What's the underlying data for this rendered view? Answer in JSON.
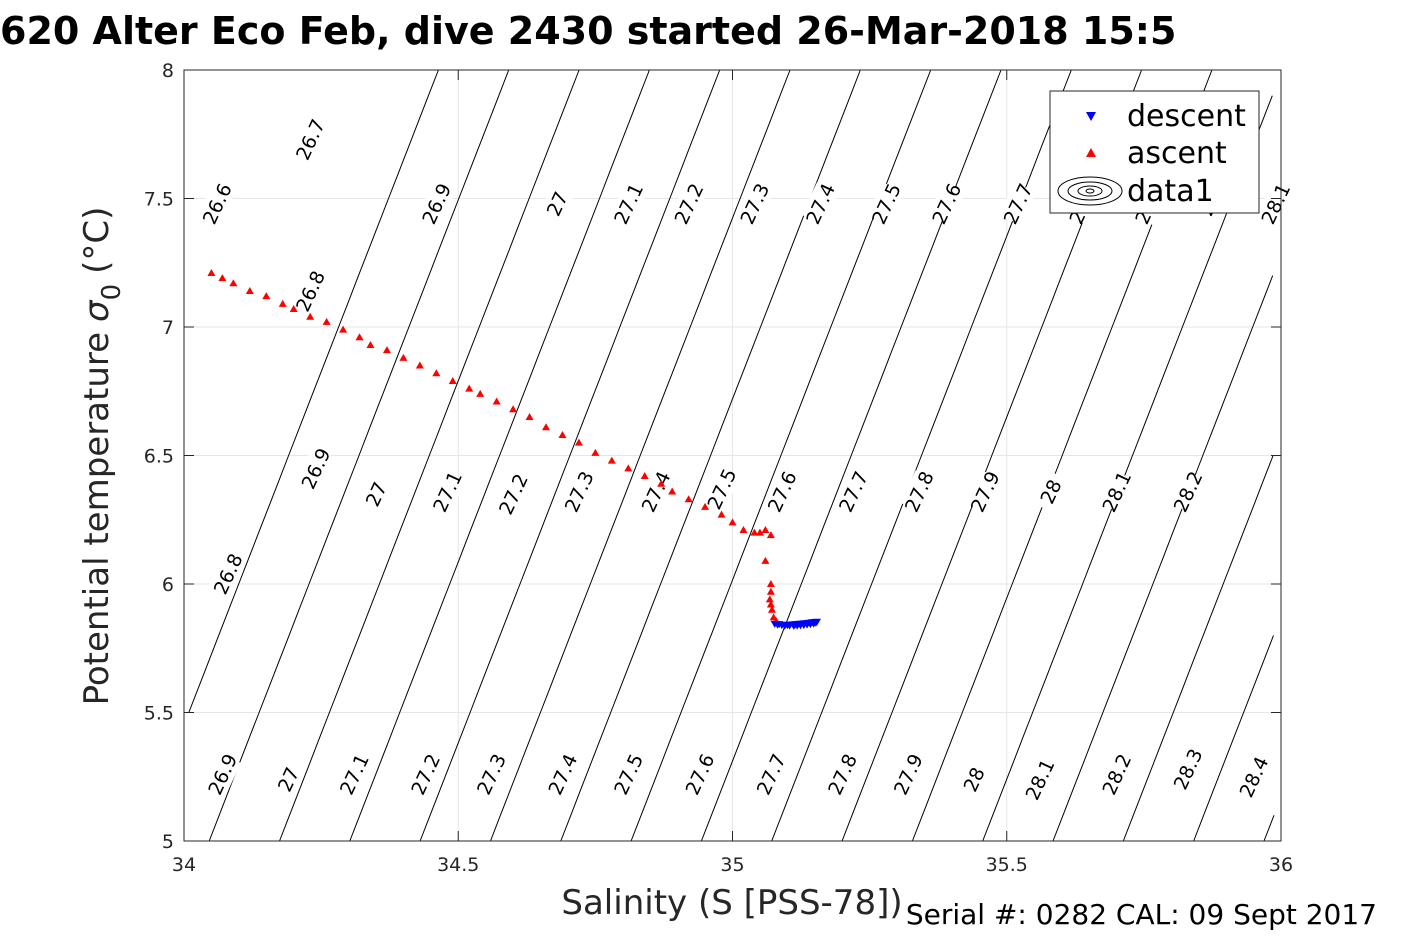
{
  "chart_data": {
    "type": "scatter",
    "title": "620 Alter Eco Feb, dive 2430 started 26-Mar-2018 15:5",
    "xlabel": "Salinity (S [PSS-78])",
    "ylabel_main": "Potential temperature",
    "ylabel_sigma": "σ",
    "ylabel_sub": "0",
    "ylabel_unit": "(°C)",
    "xlim": [
      34,
      36
    ],
    "ylim": [
      5,
      8
    ],
    "grid": true,
    "legend_position": "top-right",
    "x_ticks": [
      {
        "value": 34,
        "label": "34"
      },
      {
        "value": 34.5,
        "label": "34.5"
      },
      {
        "value": 35,
        "label": "35"
      },
      {
        "value": 35.5,
        "label": "35.5"
      },
      {
        "value": 36,
        "label": "36"
      }
    ],
    "y_ticks": [
      {
        "value": 5,
        "label": "5"
      },
      {
        "value": 5.5,
        "label": "5.5"
      },
      {
        "value": 6,
        "label": "6"
      },
      {
        "value": 6.5,
        "label": "6.5"
      },
      {
        "value": 7,
        "label": "7"
      },
      {
        "value": 7.5,
        "label": "7.5"
      },
      {
        "value": 8,
        "label": "8"
      }
    ],
    "contour_levels": [
      26.6,
      26.7,
      26.8,
      26.9,
      27.0,
      27.1,
      27.2,
      27.3,
      27.4,
      27.5,
      27.6,
      27.7,
      27.8,
      27.9,
      28.0,
      28.1,
      28.2,
      28.3,
      28.4
    ],
    "contour_labels": [
      {
        "text": "26.6",
        "s": 34.06,
        "t": 7.48
      },
      {
        "text": "26.7",
        "s": 34.23,
        "t": 7.73
      },
      {
        "text": "26.9",
        "s": 34.46,
        "t": 7.48
      },
      {
        "text": "27",
        "s": 34.68,
        "t": 7.48
      },
      {
        "text": "27.1",
        "s": 34.81,
        "t": 7.48
      },
      {
        "text": "27.2",
        "s": 34.92,
        "t": 7.48
      },
      {
        "text": "27.3",
        "s": 35.04,
        "t": 7.48
      },
      {
        "text": "27.4",
        "s": 35.16,
        "t": 7.48
      },
      {
        "text": "27.5",
        "s": 35.28,
        "t": 7.48
      },
      {
        "text": "27.6",
        "s": 35.39,
        "t": 7.48
      },
      {
        "text": "27.7",
        "s": 35.52,
        "t": 7.48
      },
      {
        "text": "27.8",
        "s": 35.64,
        "t": 7.48
      },
      {
        "text": "27.9",
        "s": 35.76,
        "t": 7.48
      },
      {
        "text": "28",
        "s": 35.87,
        "t": 7.48
      },
      {
        "text": "28.1",
        "s": 35.99,
        "t": 7.48
      },
      {
        "text": "26.8",
        "s": 34.23,
        "t": 7.14
      },
      {
        "text": "26.9",
        "s": 34.24,
        "t": 6.45
      },
      {
        "text": "27",
        "s": 34.35,
        "t": 6.35
      },
      {
        "text": "27.1",
        "s": 34.48,
        "t": 6.36
      },
      {
        "text": "27.2",
        "s": 34.6,
        "t": 6.35
      },
      {
        "text": "27.3",
        "s": 34.72,
        "t": 6.36
      },
      {
        "text": "27.4",
        "s": 34.86,
        "t": 6.36
      },
      {
        "text": "27.5",
        "s": 34.98,
        "t": 6.37
      },
      {
        "text": "27.6",
        "s": 35.09,
        "t": 6.36
      },
      {
        "text": "27.7",
        "s": 35.22,
        "t": 6.36
      },
      {
        "text": "27.8",
        "s": 35.34,
        "t": 6.36
      },
      {
        "text": "27.9",
        "s": 35.46,
        "t": 6.36
      },
      {
        "text": "28",
        "s": 35.58,
        "t": 6.36
      },
      {
        "text": "28.1",
        "s": 35.7,
        "t": 6.36
      },
      {
        "text": "28.2",
        "s": 35.83,
        "t": 6.36
      },
      {
        "text": "26.8",
        "s": 34.08,
        "t": 6.04
      },
      {
        "text": "26.9",
        "s": 34.07,
        "t": 5.26
      },
      {
        "text": "27",
        "s": 34.19,
        "t": 5.24
      },
      {
        "text": "27.1",
        "s": 34.31,
        "t": 5.26
      },
      {
        "text": "27.2",
        "s": 34.44,
        "t": 5.26
      },
      {
        "text": "27.3",
        "s": 34.56,
        "t": 5.26
      },
      {
        "text": "27.4",
        "s": 34.69,
        "t": 5.26
      },
      {
        "text": "27.5",
        "s": 34.81,
        "t": 5.26
      },
      {
        "text": "27.6",
        "s": 34.94,
        "t": 5.26
      },
      {
        "text": "27.7",
        "s": 35.07,
        "t": 5.26
      },
      {
        "text": "27.8",
        "s": 35.2,
        "t": 5.26
      },
      {
        "text": "27.9",
        "s": 35.32,
        "t": 5.26
      },
      {
        "text": "28",
        "s": 35.44,
        "t": 5.24
      },
      {
        "text": "28.1",
        "s": 35.56,
        "t": 5.24
      },
      {
        "text": "28.2",
        "s": 35.7,
        "t": 5.26
      },
      {
        "text": "28.3",
        "s": 35.83,
        "t": 5.28
      },
      {
        "text": "28.4",
        "s": 35.95,
        "t": 5.25
      }
    ],
    "series": [
      {
        "name": "descent",
        "color": "#0000ff",
        "marker": "triangle-down",
        "x": [
          35.077,
          35.082,
          35.09,
          35.095,
          35.1,
          35.105,
          35.11,
          35.115,
          35.12,
          35.125,
          35.13,
          35.135,
          35.14,
          35.145,
          35.15,
          35.154,
          35.152,
          35.148,
          35.142,
          35.136,
          35.13,
          35.124,
          35.118,
          35.112,
          35.104,
          35.096,
          35.09,
          35.085
        ],
        "y": [
          5.845,
          5.842,
          5.84,
          5.838,
          5.84,
          5.842,
          5.843,
          5.844,
          5.845,
          5.846,
          5.847,
          5.848,
          5.849,
          5.851,
          5.852,
          5.853,
          5.849,
          5.846,
          5.844,
          5.842,
          5.84,
          5.839,
          5.838,
          5.837,
          5.838,
          5.84,
          5.842,
          5.844
        ]
      },
      {
        "name": "ascent",
        "color": "#ff0000",
        "marker": "triangle-up",
        "x": [
          34.05,
          34.07,
          34.09,
          34.12,
          34.15,
          34.18,
          34.2,
          34.23,
          34.26,
          34.29,
          34.32,
          34.34,
          34.37,
          34.4,
          34.43,
          34.46,
          34.49,
          34.52,
          34.54,
          34.57,
          34.6,
          34.63,
          34.66,
          34.69,
          34.72,
          34.75,
          34.78,
          34.81,
          34.84,
          34.87,
          34.89,
          34.92,
          34.95,
          34.98,
          35.0,
          35.02,
          35.04,
          35.05,
          35.06,
          35.07,
          35.06,
          35.07,
          35.07,
          35.068,
          35.07,
          35.072,
          35.075,
          35.08
        ],
        "y": [
          7.21,
          7.19,
          7.17,
          7.14,
          7.12,
          7.09,
          7.07,
          7.04,
          7.02,
          6.99,
          6.96,
          6.93,
          6.91,
          6.88,
          6.85,
          6.82,
          6.79,
          6.76,
          6.74,
          6.71,
          6.68,
          6.65,
          6.61,
          6.58,
          6.55,
          6.51,
          6.48,
          6.45,
          6.42,
          6.39,
          6.36,
          6.33,
          6.3,
          6.27,
          6.24,
          6.21,
          6.2,
          6.2,
          6.21,
          6.19,
          6.09,
          6.0,
          5.97,
          5.94,
          5.92,
          5.9,
          5.87,
          5.855
        ]
      },
      {
        "name": "data1",
        "color": "#000000",
        "marker": "contour"
      }
    ]
  },
  "footer": "Serial #: 0282  CAL: 09 Sept 2017"
}
